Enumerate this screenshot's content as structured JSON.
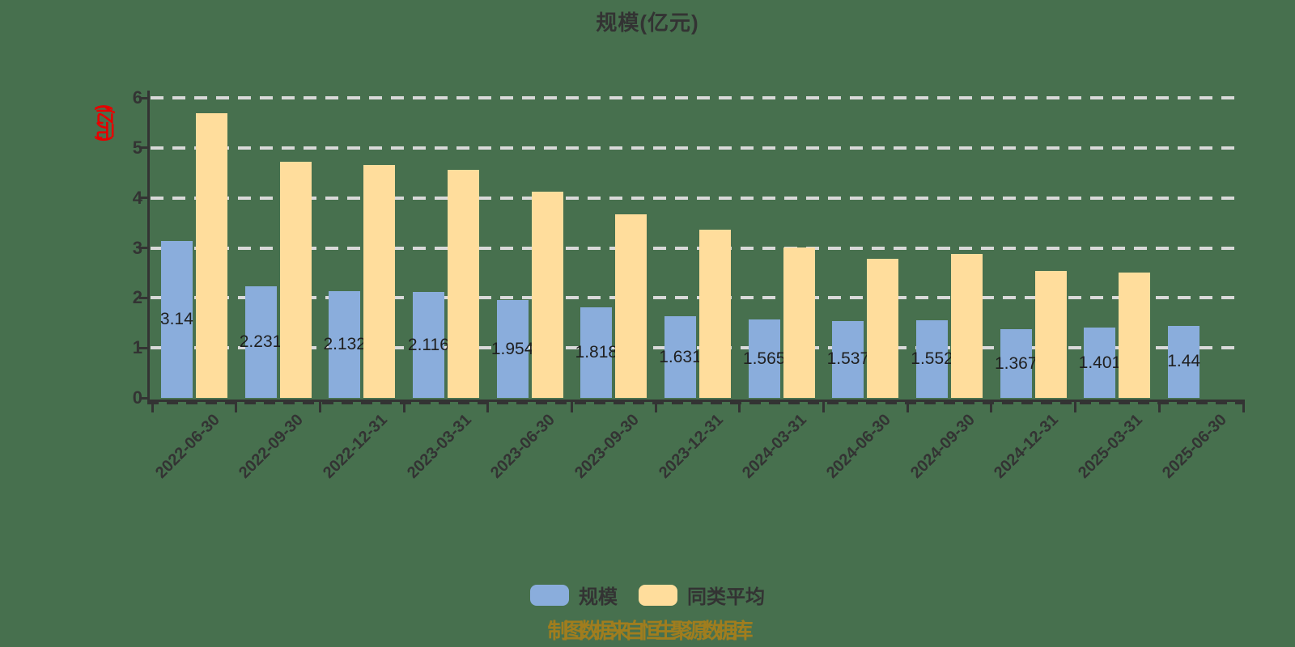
{
  "title": "规模(亿元)",
  "y_axis": {
    "name": "(亿元)",
    "name_color": "#E60000",
    "tick_labels": [
      "0",
      "1",
      "2",
      "3",
      "4",
      "5",
      "6"
    ],
    "min": 0,
    "max": 6
  },
  "legend": {
    "items": [
      {
        "label": "规模",
        "color": "#8AADDC"
      },
      {
        "label": "同类平均",
        "color": "#FFDD9C"
      }
    ]
  },
  "source_note": "制图数据来自恒生聚源数据库",
  "colors": {
    "background": "#47704E",
    "axis": "#333333",
    "gridline": "#D9D9D9",
    "bar_blue": "#8AADDC",
    "bar_yellow": "#FFDD9C",
    "bar_label": "#1f1f1f",
    "axis_name_red": "#E60000",
    "source_note": "#A07D1E"
  },
  "chart_data": {
    "type": "bar",
    "title": "规模(亿元)",
    "xlabel": "",
    "ylabel": "(亿元)",
    "ylim": [
      0,
      6
    ],
    "grid": "dashed-horizontal",
    "legend_position": "bottom",
    "categories": [
      "2022-06-30",
      "2022-09-30",
      "2022-12-31",
      "2023-03-31",
      "2023-06-30",
      "2023-09-30",
      "2023-12-31",
      "2024-03-31",
      "2024-06-30",
      "2024-09-30",
      "2024-12-31",
      "2025-03-31",
      "2025-06-30"
    ],
    "series": [
      {
        "name": "规模",
        "color": "#8AADDC",
        "values": [
          3.14,
          2.231,
          2.132,
          2.116,
          1.954,
          1.818,
          1.631,
          1.565,
          1.537,
          1.552,
          1.367,
          1.401,
          1.44
        ],
        "data_labels": [
          "3.14",
          "2.231",
          "2.132",
          "2.116",
          "1.954",
          "1.818",
          "1.631",
          "1.565",
          "1.537",
          "1.552",
          "1.367",
          "1.401",
          "1.44"
        ]
      },
      {
        "name": "同类平均",
        "color": "#FFDD9C",
        "values": [
          5.69,
          4.72,
          4.65,
          4.56,
          4.13,
          3.67,
          3.37,
          3.01,
          2.78,
          2.88,
          2.54,
          2.51,
          null
        ],
        "data_labels": []
      }
    ]
  }
}
